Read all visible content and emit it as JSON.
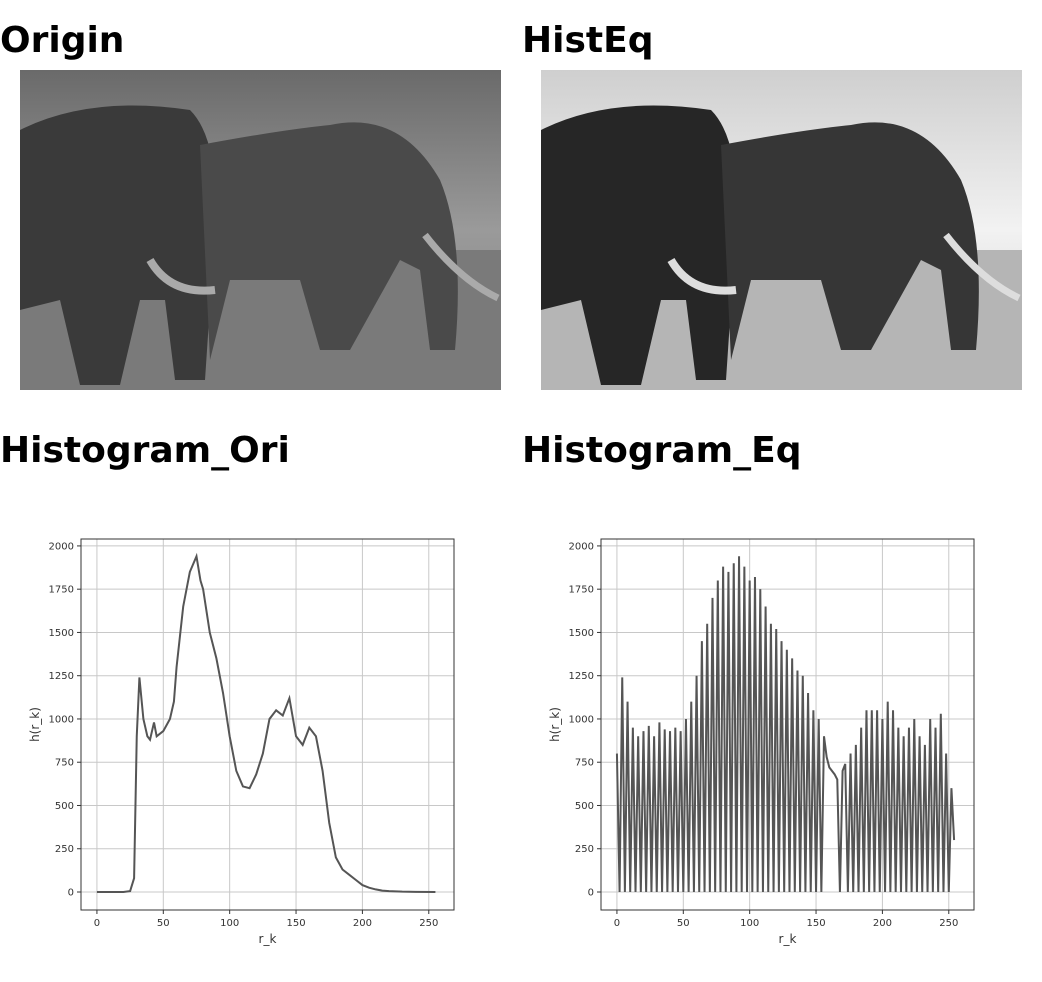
{
  "images": [
    {
      "title": "Origin"
    },
    {
      "title": "HistEq"
    }
  ],
  "chart_data": [
    {
      "type": "line",
      "title": "Histogram_Ori",
      "xlabel": "r_k",
      "ylabel": "h(r_k)",
      "color": "#555555",
      "grid": true,
      "xlim": [
        -12,
        269
      ],
      "ylim": [
        -104,
        2040
      ],
      "xticks": [
        0,
        50,
        100,
        150,
        200,
        250
      ],
      "yticks": [
        0,
        250,
        500,
        750,
        1000,
        1250,
        1500,
        1750,
        2000
      ],
      "x": [
        0,
        5,
        10,
        15,
        20,
        25,
        28,
        30,
        32,
        35,
        38,
        40,
        43,
        45,
        50,
        55,
        58,
        60,
        65,
        70,
        75,
        78,
        80,
        85,
        90,
        95,
        100,
        105,
        110,
        115,
        120,
        125,
        130,
        135,
        140,
        145,
        150,
        155,
        160,
        165,
        170,
        175,
        180,
        185,
        190,
        195,
        200,
        205,
        210,
        215,
        220,
        230,
        240,
        255
      ],
      "values": [
        0,
        0,
        0,
        0,
        0,
        5,
        80,
        900,
        1240,
        1000,
        900,
        880,
        980,
        900,
        930,
        1000,
        1100,
        1300,
        1650,
        1850,
        1940,
        1800,
        1750,
        1500,
        1350,
        1150,
        900,
        700,
        610,
        600,
        680,
        800,
        1000,
        1050,
        1020,
        1120,
        900,
        850,
        950,
        900,
        700,
        400,
        200,
        130,
        100,
        70,
        40,
        25,
        15,
        8,
        5,
        2,
        1,
        0
      ]
    },
    {
      "type": "line",
      "title": "Histogram_Eq",
      "xlabel": "r_k",
      "ylabel": "h(r_k)",
      "color": "#555555",
      "grid": true,
      "xlim": [
        -12,
        269
      ],
      "ylim": [
        -104,
        2040
      ],
      "xticks": [
        0,
        50,
        100,
        150,
        200,
        250
      ],
      "yticks": [
        0,
        250,
        500,
        750,
        1000,
        1250,
        1500,
        1750,
        2000
      ],
      "x": [
        0,
        2,
        4,
        6,
        8,
        10,
        12,
        14,
        16,
        18,
        20,
        22,
        24,
        26,
        28,
        30,
        32,
        34,
        36,
        38,
        40,
        42,
        44,
        46,
        48,
        50,
        52,
        54,
        56,
        58,
        60,
        62,
        64,
        66,
        68,
        70,
        72,
        74,
        76,
        78,
        80,
        82,
        84,
        86,
        88,
        90,
        92,
        94,
        96,
        98,
        100,
        102,
        104,
        106,
        108,
        110,
        112,
        114,
        116,
        118,
        120,
        122,
        124,
        126,
        128,
        130,
        132,
        134,
        136,
        138,
        140,
        142,
        144,
        146,
        148,
        150,
        152,
        154,
        156,
        158,
        160,
        162,
        164,
        166,
        168,
        170,
        172,
        174,
        176,
        178,
        180,
        182,
        184,
        186,
        188,
        190,
        192,
        194,
        196,
        198,
        200,
        202,
        204,
        206,
        208,
        210,
        212,
        214,
        216,
        218,
        220,
        222,
        224,
        226,
        228,
        230,
        232,
        234,
        236,
        238,
        240,
        242,
        244,
        246,
        248,
        250,
        252,
        254
      ],
      "values": [
        800,
        0,
        1240,
        0,
        1100,
        0,
        950,
        0,
        900,
        0,
        930,
        0,
        960,
        0,
        900,
        0,
        980,
        0,
        940,
        0,
        930,
        0,
        950,
        0,
        930,
        0,
        1000,
        0,
        1100,
        0,
        1250,
        0,
        1450,
        0,
        1550,
        0,
        1700,
        0,
        1800,
        0,
        1880,
        0,
        1850,
        0,
        1900,
        0,
        1940,
        0,
        1880,
        0,
        1800,
        0,
        1820,
        0,
        1750,
        0,
        1650,
        0,
        1550,
        0,
        1520,
        0,
        1450,
        0,
        1400,
        0,
        1350,
        0,
        1280,
        0,
        1250,
        0,
        1150,
        0,
        1050,
        0,
        1000,
        0,
        900,
        780,
        720,
        700,
        680,
        650,
        0,
        700,
        740,
        0,
        800,
        0,
        850,
        0,
        950,
        0,
        1050,
        0,
        1050,
        0,
        1050,
        0,
        1000,
        0,
        1100,
        0,
        1050,
        0,
        950,
        0,
        900,
        0,
        950,
        0,
        1000,
        0,
        900,
        0,
        850,
        0,
        1000,
        0,
        950,
        0,
        1030,
        0,
        800,
        0,
        600,
        300
      ]
    }
  ]
}
